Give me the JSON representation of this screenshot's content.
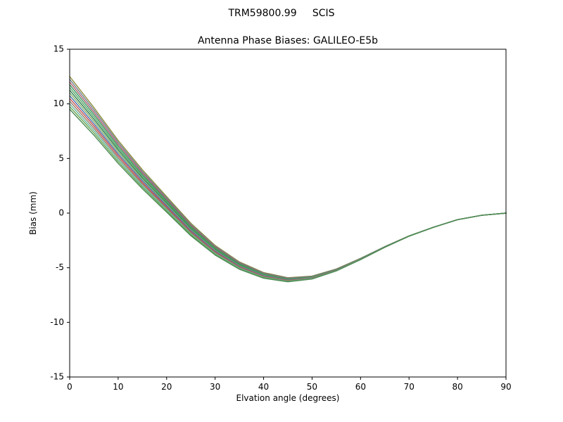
{
  "chart_data": {
    "type": "line",
    "suptitle": "TRM59800.99     SCIS",
    "title": "Antenna Phase Biases: GALILEO-E5b",
    "xlabel": "Elvation angle (degrees)",
    "ylabel": "Bias (mm)",
    "xlim": [
      0,
      90
    ],
    "ylim": [
      -15,
      15
    ],
    "xticks": [
      0,
      10,
      20,
      30,
      40,
      50,
      60,
      70,
      80,
      90
    ],
    "yticks": [
      -15,
      -10,
      -5,
      0,
      5,
      10,
      15
    ],
    "grid": false,
    "legend": "none",
    "x": [
      0,
      5,
      10,
      15,
      20,
      25,
      30,
      35,
      40,
      45,
      50,
      55,
      60,
      65,
      70,
      75,
      80,
      85,
      90
    ],
    "series": [
      {
        "name": "s01",
        "color": "#8f8f3d",
        "values": [
          12.5,
          9.66,
          6.65,
          3.97,
          1.51,
          -0.93,
          -2.96,
          -4.46,
          -5.44,
          -5.91,
          -5.77,
          -5.11,
          -4.14,
          -3.07,
          -2.08,
          -1.29,
          -0.6,
          -0.2,
          0.0
        ]
      },
      {
        "name": "s02",
        "color": "#708090",
        "values": [
          12.25,
          9.45,
          6.48,
          3.82,
          1.39,
          -1.03,
          -3.03,
          -4.51,
          -5.49,
          -5.94,
          -5.79,
          -5.13,
          -4.15,
          -3.07,
          -2.09,
          -1.29,
          -0.6,
          -0.2,
          0.0
        ]
      },
      {
        "name": "s03",
        "color": "#b25d6e",
        "values": [
          12.0,
          9.24,
          6.3,
          3.68,
          1.27,
          -1.12,
          -3.1,
          -4.57,
          -5.53,
          -5.98,
          -5.81,
          -5.14,
          -4.16,
          -3.08,
          -2.09,
          -1.3,
          -0.6,
          -0.2,
          0.0
        ]
      },
      {
        "name": "s04",
        "color": "#3a915f",
        "values": [
          11.75,
          9.03,
          6.13,
          3.53,
          1.15,
          -1.22,
          -3.18,
          -4.63,
          -5.57,
          -6.01,
          -5.83,
          -5.16,
          -4.17,
          -3.08,
          -2.09,
          -1.3,
          -0.6,
          -0.2,
          0.0
        ]
      },
      {
        "name": "s05",
        "color": "#55a868",
        "values": [
          11.5,
          8.82,
          5.95,
          3.39,
          1.04,
          -1.31,
          -3.25,
          -4.69,
          -5.61,
          -6.04,
          -5.86,
          -5.17,
          -4.18,
          -3.09,
          -2.09,
          -1.3,
          -0.6,
          -0.2,
          0.0
        ]
      },
      {
        "name": "s06",
        "color": "#2e7d4f",
        "values": [
          11.25,
          8.61,
          5.78,
          3.24,
          0.92,
          -1.41,
          -3.33,
          -4.74,
          -5.66,
          -6.07,
          -5.88,
          -5.19,
          -4.19,
          -3.09,
          -2.1,
          -1.3,
          -0.6,
          -0.2,
          0.0
        ]
      },
      {
        "name": "s07",
        "color": "#86b06a",
        "values": [
          11.0,
          8.4,
          5.6,
          3.1,
          0.8,
          -1.5,
          -3.4,
          -4.8,
          -5.7,
          -6.1,
          -5.9,
          -5.2,
          -4.2,
          -3.1,
          -2.1,
          -1.3,
          -0.6,
          -0.2,
          0.0
        ]
      },
      {
        "name": "s08",
        "color": "#4c72b0",
        "values": [
          10.75,
          8.19,
          5.42,
          2.96,
          0.68,
          -1.59,
          -3.47,
          -4.86,
          -5.74,
          -6.13,
          -5.92,
          -5.21,
          -4.21,
          -3.11,
          -2.1,
          -1.3,
          -0.6,
          -0.2,
          0.0
        ]
      },
      {
        "name": "s09",
        "color": "#c44e52",
        "values": [
          10.5,
          7.98,
          5.25,
          2.81,
          0.56,
          -1.69,
          -3.55,
          -4.91,
          -5.79,
          -6.16,
          -5.94,
          -5.23,
          -4.22,
          -3.11,
          -2.11,
          -1.3,
          -0.6,
          -0.2,
          0.0
        ]
      },
      {
        "name": "s10",
        "color": "#937860",
        "values": [
          10.25,
          7.77,
          5.07,
          2.67,
          0.45,
          -1.78,
          -3.62,
          -4.97,
          -5.83,
          -6.19,
          -5.97,
          -5.24,
          -4.23,
          -3.12,
          -2.11,
          -1.3,
          -0.6,
          -0.2,
          0.0
        ]
      },
      {
        "name": "s11",
        "color": "#64b5a0",
        "values": [
          10.0,
          7.56,
          4.9,
          2.52,
          0.33,
          -1.88,
          -3.7,
          -5.03,
          -5.87,
          -6.23,
          -5.99,
          -5.26,
          -4.24,
          -3.12,
          -2.11,
          -1.3,
          -0.6,
          -0.2,
          0.0
        ]
      },
      {
        "name": "s12",
        "color": "#6aa84f",
        "values": [
          9.75,
          7.35,
          4.72,
          2.38,
          0.21,
          -1.97,
          -3.77,
          -5.09,
          -5.91,
          -6.26,
          -6.01,
          -5.27,
          -4.25,
          -3.13,
          -2.11,
          -1.31,
          -0.6,
          -0.2,
          0.0
        ]
      },
      {
        "name": "s13",
        "color": "#4d8a57",
        "values": [
          9.5,
          7.14,
          4.55,
          2.23,
          0.09,
          -2.07,
          -3.84,
          -5.14,
          -5.96,
          -6.29,
          -6.03,
          -5.29,
          -4.26,
          -3.13,
          -2.12,
          -1.31,
          -0.6,
          -0.2,
          0.0
        ]
      }
    ]
  }
}
